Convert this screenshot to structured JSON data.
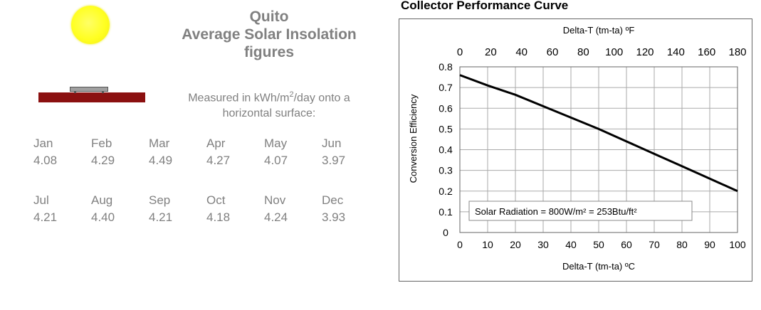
{
  "location": {
    "line1": "Quito",
    "line2": "Average Solar Insolation",
    "line3": "figures"
  },
  "units": {
    "prefix": "Measured in kWh/m",
    "sup": "2",
    "suffix": "/day onto a",
    "line2": "horizontal surface:"
  },
  "months": [
    {
      "name": "Jan",
      "value": "4.08"
    },
    {
      "name": "Feb",
      "value": "4.29"
    },
    {
      "name": "Mar",
      "value": "4.49"
    },
    {
      "name": "Apr",
      "value": "4.27"
    },
    {
      "name": "May",
      "value": "4.07"
    },
    {
      "name": "Jun",
      "value": "3.97"
    },
    {
      "name": "Jul",
      "value": "4.21"
    },
    {
      "name": "Aug",
      "value": "4.40"
    },
    {
      "name": "Sep",
      "value": "4.21"
    },
    {
      "name": "Oct",
      "value": "4.18"
    },
    {
      "name": "Nov",
      "value": "4.24"
    },
    {
      "name": "Dec",
      "value": "3.93"
    }
  ],
  "colors": {
    "sun": "#ffff22",
    "ground": "#8b1010",
    "collector": "#a0a0a0",
    "text": "#808080",
    "curve": "#000000",
    "grid": "#999999"
  },
  "chart_data": {
    "type": "line",
    "title": "Collector Performance Curve",
    "xlabel": "Delta-T (tm-ta) ºC",
    "x2label": "Delta-T (tm-ta) ºF",
    "ylabel": "Conversion Efficiency",
    "xlim": [
      0,
      100
    ],
    "x2lim": [
      0,
      180
    ],
    "ylim": [
      0,
      0.8
    ],
    "xticks": [
      "0",
      "10",
      "20",
      "30",
      "40",
      "50",
      "60",
      "70",
      "80",
      "90",
      "100"
    ],
    "x2ticks": [
      "0",
      "20",
      "40",
      "60",
      "80",
      "100",
      "120",
      "140",
      "160",
      "180"
    ],
    "yticks": [
      "0",
      "0.1",
      "0.2",
      "0.3",
      "0.4",
      "0.5",
      "0.6",
      "0.7",
      "0.8"
    ],
    "grid": true,
    "annotation": "Solar Radiation = 800W/m² = 253Btu/ft²",
    "series": [
      {
        "x": [
          0,
          10,
          20,
          30,
          40,
          50,
          60,
          70,
          80,
          90,
          100
        ],
        "y": [
          0.76,
          0.71,
          0.665,
          0.61,
          0.555,
          0.5,
          0.44,
          0.38,
          0.32,
          0.26,
          0.2
        ]
      }
    ]
  }
}
